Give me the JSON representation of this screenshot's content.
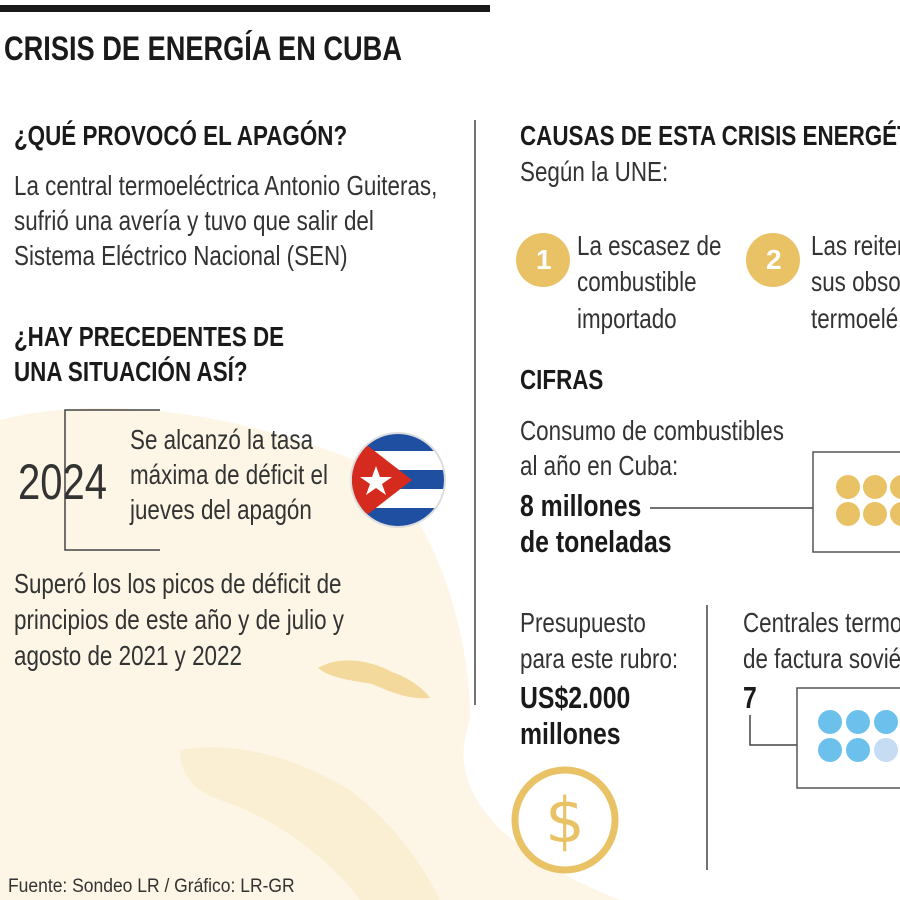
{
  "title": "CRISIS DE ENERGÍA EN CUBA",
  "left": {
    "q1": {
      "heading": "¿QUÉ PROVOCÓ EL APAGÓN?",
      "lines": [
        "La central termoeléctrica Antonio Guiteras,",
        "sufrió una avería y tuvo que salir del",
        "Sistema Eléctrico Nacional (SEN)"
      ]
    },
    "q2": {
      "heading_lines": [
        "¿HAY PRECEDENTES DE",
        "UNA SITUACIÓN ASÍ?"
      ],
      "year": "2024",
      "note_lines": [
        "Se alcanzó la tasa",
        "máxima de déficit el",
        "jueves del apagón"
      ],
      "detail_lines": [
        "Superó los  los picos de déficit de",
        "principios de este año y de julio y",
        "agosto de 2021 y 2022"
      ]
    }
  },
  "right": {
    "causes": {
      "heading": "CAUSAS DE ESTA CRISIS ENERGÉTI",
      "subheading": "Según la UNE:",
      "items": [
        {
          "number": "1",
          "lines": [
            "La escasez de",
            "combustible",
            "importado"
          ]
        },
        {
          "number": "2",
          "lines": [
            "Las reiter",
            "sus obsol",
            "termoelé"
          ]
        }
      ]
    },
    "figures": {
      "heading": "CIFRAS",
      "consumption": {
        "label_lines": [
          "Consumo de combustibles",
          "al año en Cuba:"
        ],
        "value_lines": [
          "8 millones",
          "de toneladas"
        ]
      },
      "budget": {
        "label_lines": [
          "Presupuesto",
          "para este rubro:"
        ],
        "value_lines": [
          "US$2.000",
          "millones"
        ]
      },
      "plants": {
        "label_lines": [
          "Centrales termo",
          "de factura sovié"
        ],
        "value": "7"
      }
    }
  },
  "source": "Fuente: Sondeo LR / Gráfico: LR-GR"
}
